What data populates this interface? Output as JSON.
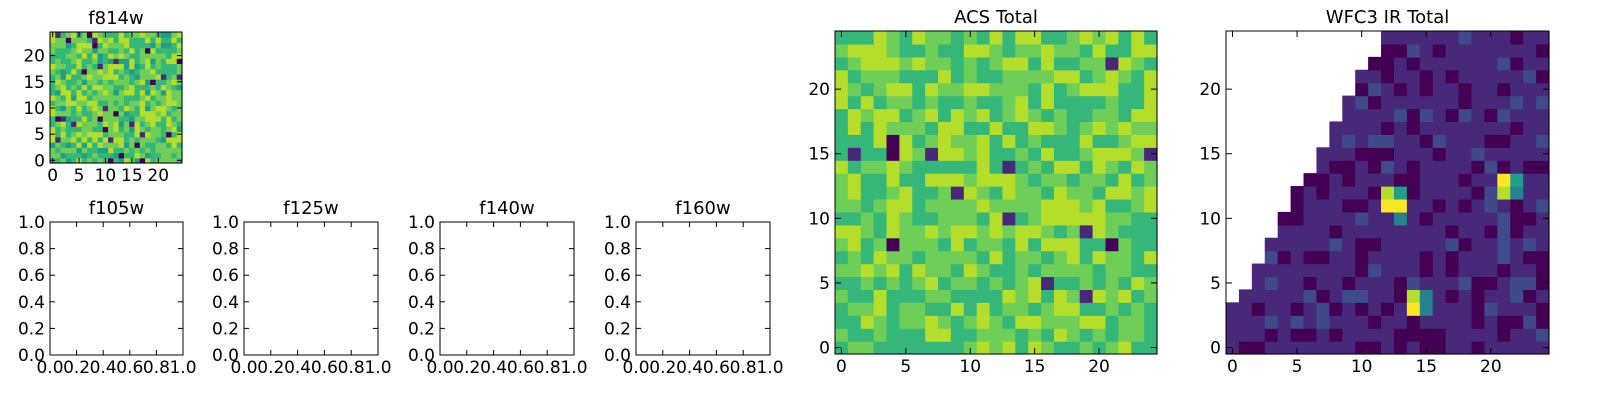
{
  "colors": {
    "viridis": [
      "#440154",
      "#482878",
      "#3e4a89",
      "#31688e",
      "#26828e",
      "#1f9e89",
      "#35b779",
      "#6ece58",
      "#b5de2b",
      "#fde725"
    ],
    "axis": "#000000",
    "background": "#ffffff"
  },
  "chart_data": [
    {
      "id": "f814w",
      "type": "heatmap",
      "title": "f814w",
      "grid_size": 25,
      "xlim": [
        -0.5,
        24.5
      ],
      "ylim": [
        -0.5,
        24.5
      ],
      "xticks": [
        0,
        5,
        10,
        15,
        20
      ],
      "yticks": [
        0,
        5,
        10,
        15,
        20
      ],
      "value_range": [
        0,
        1
      ],
      "typical_level": 0.72,
      "spread": 0.15,
      "low_pixel_fraction": 0.04,
      "seed": 11
    },
    {
      "id": "f105w",
      "type": "empty",
      "title": "f105w",
      "xlim": [
        0,
        1
      ],
      "ylim": [
        0,
        1
      ],
      "xticks": [
        "0.0",
        "0.2",
        "0.4",
        "0.6",
        "0.8",
        "1.0"
      ],
      "yticks": [
        "0.0",
        "0.2",
        "0.4",
        "0.6",
        "0.8",
        "1.0"
      ]
    },
    {
      "id": "f125w",
      "type": "empty",
      "title": "f125w",
      "xlim": [
        0,
        1
      ],
      "ylim": [
        0,
        1
      ],
      "xticks": [
        "0.0",
        "0.2",
        "0.4",
        "0.6",
        "0.8",
        "1.0"
      ],
      "yticks": [
        "0.0",
        "0.2",
        "0.4",
        "0.6",
        "0.8",
        "1.0"
      ]
    },
    {
      "id": "f140w",
      "type": "empty",
      "title": "f140w",
      "xlim": [
        0,
        1
      ],
      "ylim": [
        0,
        1
      ],
      "xticks": [
        "0.0",
        "0.2",
        "0.4",
        "0.6",
        "0.8",
        "1.0"
      ],
      "yticks": [
        "0.0",
        "0.2",
        "0.4",
        "0.6",
        "0.8",
        "1.0"
      ]
    },
    {
      "id": "f160w",
      "type": "empty",
      "title": "f160w",
      "xlim": [
        0,
        1
      ],
      "ylim": [
        0,
        1
      ],
      "xticks": [
        "0.0",
        "0.2",
        "0.4",
        "0.6",
        "0.8",
        "1.0"
      ],
      "yticks": [
        "0.0",
        "0.2",
        "0.4",
        "0.6",
        "0.8",
        "1.0"
      ]
    },
    {
      "id": "acs-total",
      "type": "heatmap",
      "title": "ACS Total",
      "grid_size": 25,
      "xlim": [
        -0.5,
        24.5
      ],
      "ylim": [
        -0.5,
        24.5
      ],
      "xticks": [
        0,
        5,
        10,
        15,
        20
      ],
      "yticks": [
        0,
        5,
        10,
        15,
        20
      ],
      "value_range": [
        0,
        1
      ],
      "typical_level": 0.74,
      "spread": 0.14,
      "low_pixel_fraction": 0.015,
      "seed": 23
    },
    {
      "id": "wfc3-ir-total",
      "type": "heatmap",
      "title": "WFC3 IR Total",
      "grid_size": 25,
      "xlim": [
        -0.5,
        24.5
      ],
      "ylim": [
        -0.5,
        24.5
      ],
      "xticks": [
        0,
        5,
        10,
        15,
        20
      ],
      "yticks": [
        0,
        5,
        10,
        15,
        20
      ],
      "value_range": [
        0,
        1
      ],
      "typical_level": 0.14,
      "spread": 0.08,
      "low_pixel_fraction": 0.0,
      "seed": 37,
      "masked_region": "upper-left triangle: cells with y > 1.8·x + 3 are empty (no data)",
      "bright_sources": [
        {
          "x": 12,
          "y": 11,
          "value": 0.95
        },
        {
          "x": 13,
          "y": 11,
          "value": 0.9
        },
        {
          "x": 12,
          "y": 12,
          "value": 0.85
        },
        {
          "x": 13,
          "y": 12,
          "value": 0.55
        },
        {
          "x": 13,
          "y": 10,
          "value": 0.45
        },
        {
          "x": 21,
          "y": 13,
          "value": 0.9
        },
        {
          "x": 21,
          "y": 12,
          "value": 0.85
        },
        {
          "x": 22,
          "y": 13,
          "value": 0.5
        },
        {
          "x": 22,
          "y": 12,
          "value": 0.45
        },
        {
          "x": 14,
          "y": 3,
          "value": 0.95
        },
        {
          "x": 14,
          "y": 4,
          "value": 0.85
        },
        {
          "x": 15,
          "y": 4,
          "value": 0.45
        },
        {
          "x": 15,
          "y": 3,
          "value": 0.4
        }
      ]
    }
  ]
}
